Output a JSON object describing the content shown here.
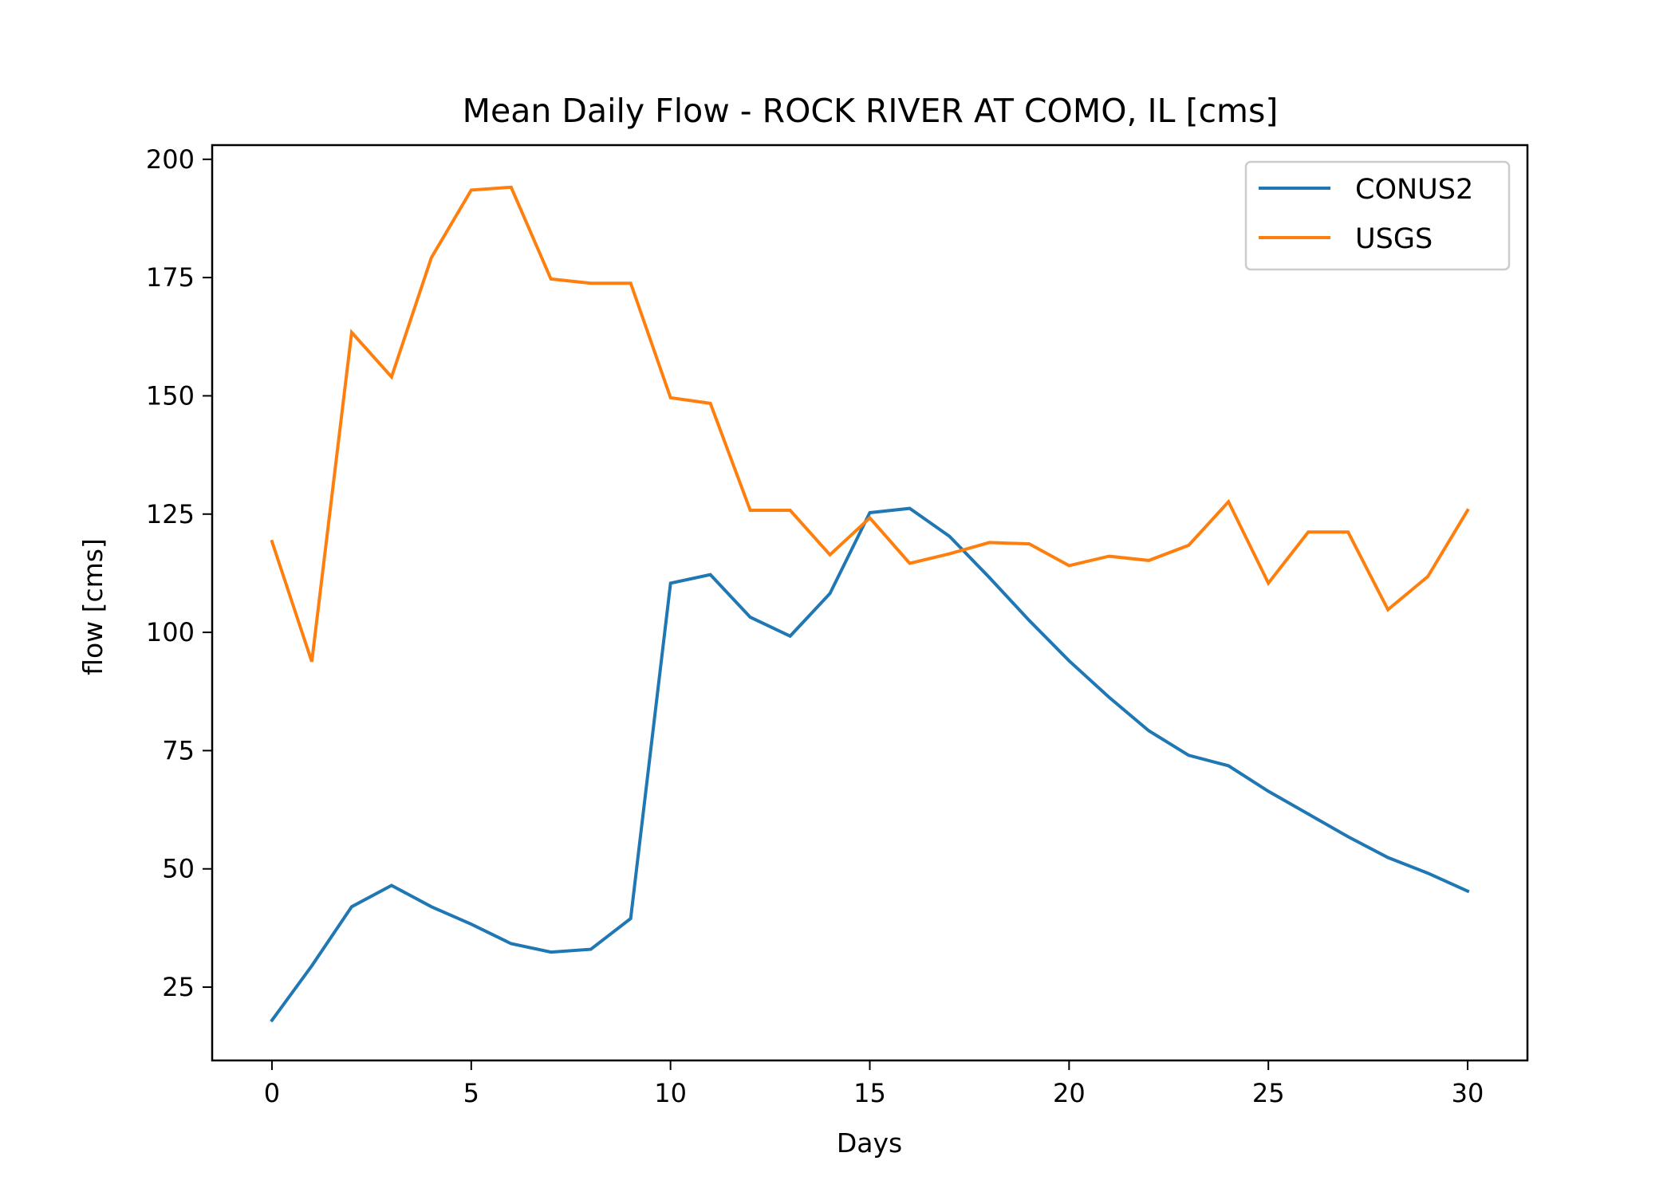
{
  "chart_data": {
    "type": "line",
    "title": "Mean Daily Flow - ROCK RIVER AT COMO, IL [cms]",
    "xlabel": "Days",
    "ylabel": "flow [cms]",
    "x": [
      0,
      1,
      2,
      3,
      4,
      5,
      6,
      7,
      8,
      9,
      10,
      11,
      12,
      13,
      14,
      15,
      16,
      17,
      18,
      19,
      20,
      21,
      22,
      23,
      24,
      25,
      26,
      27,
      28,
      29,
      30
    ],
    "xlim": [
      -1.5,
      31.5
    ],
    "ylim": [
      9.5,
      203
    ],
    "xticks": [
      0,
      5,
      10,
      15,
      20,
      25,
      30
    ],
    "yticks": [
      25,
      50,
      75,
      100,
      125,
      150,
      175,
      200
    ],
    "grid": false,
    "legend_position": "top-right",
    "series": [
      {
        "name": "CONUS2",
        "color": "#1f77b4",
        "values": [
          18,
          29.5,
          42,
          46.5,
          42,
          38.3,
          34.2,
          32.4,
          33,
          39.5,
          110.4,
          112.2,
          103.2,
          99.2,
          108.2,
          125.3,
          126.2,
          120.3,
          111.6,
          102.5,
          94,
          86.3,
          79.2,
          74,
          71.8,
          66.4,
          61.6,
          56.8,
          52.4,
          49.1,
          45.3
        ]
      },
      {
        "name": "USGS",
        "color": "#ff7f0e",
        "values": [
          119.2,
          93.8,
          163.4,
          154,
          179.2,
          193.5,
          194.1,
          174.7,
          173.8,
          173.8,
          149.6,
          148.4,
          125.8,
          125.8,
          116.4,
          124.2,
          114.6,
          116.6,
          119,
          118.7,
          114.1,
          116.1,
          115.2,
          118.4,
          127.6,
          110.4,
          121.2,
          121.2,
          104.8,
          111.8,
          125.8
        ]
      }
    ]
  }
}
